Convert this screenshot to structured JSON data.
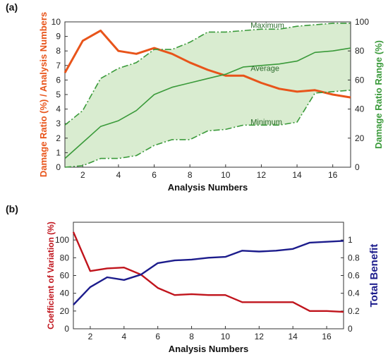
{
  "chart_data": [
    {
      "panel_label": "(a)",
      "type": "line",
      "xlabel": "Analysis Numbers",
      "ylabel_left": "Damage Ratio (%) / Analysis Numbers",
      "ylabel_right": "Damage Ratio Range (%)",
      "xlim": [
        1,
        17
      ],
      "ylim_left": [
        0,
        10
      ],
      "ylim_right": [
        0,
        100
      ],
      "x_ticks": [
        2,
        4,
        6,
        8,
        10,
        12,
        14,
        16
      ],
      "y_ticks_left": [
        0,
        1,
        2,
        3,
        4,
        5,
        6,
        7,
        8,
        9,
        10
      ],
      "y_ticks_right": [
        0,
        20,
        40,
        60,
        80,
        100
      ],
      "x": [
        1,
        2,
        3,
        4,
        5,
        6,
        7,
        8,
        9,
        10,
        11,
        12,
        13,
        14,
        15,
        16,
        17
      ],
      "series": [
        {
          "name": "Damage Ratio / Analysis Numbers",
          "axis": "left",
          "color": "#e8541a",
          "values": [
            6.5,
            8.7,
            9.4,
            8.0,
            7.8,
            8.2,
            7.8,
            7.2,
            6.7,
            6.3,
            6.3,
            5.8,
            5.4,
            5.2,
            5.3,
            5.0,
            4.8
          ]
        },
        {
          "name": "Maximum",
          "axis": "right",
          "color": "#3a9a3a",
          "dashed": true,
          "values": [
            29,
            39,
            61,
            68,
            72,
            81,
            81,
            86,
            93,
            93,
            94,
            95,
            95,
            97,
            98,
            99,
            99
          ]
        },
        {
          "name": "Average",
          "axis": "right",
          "color": "#3a9a3a",
          "dashed": false,
          "values": [
            6,
            17,
            28,
            32,
            39,
            50,
            55,
            58,
            61,
            64,
            69,
            70,
            71,
            73,
            79,
            80,
            82
          ]
        },
        {
          "name": "Minimum",
          "axis": "right",
          "color": "#3a9a3a",
          "dashed": true,
          "values": [
            0,
            1,
            6,
            6,
            8,
            15,
            19,
            19,
            25,
            26,
            29,
            29,
            29,
            31,
            51,
            52,
            53
          ]
        }
      ],
      "fill_between": [
        "Minimum",
        "Maximum"
      ],
      "fill_color": "#d9ecd0",
      "annotations": [
        "Maximum",
        "Average",
        "Minimum"
      ]
    },
    {
      "panel_label": "(b)",
      "type": "line",
      "xlabel": "Analysis Numbers",
      "ylabel_left": "Coefficient of Variation (%)",
      "ylabel_right": "Total Benefit",
      "xlim": [
        1,
        17
      ],
      "ylim_left": [
        0,
        120
      ],
      "ylim_right": [
        0,
        1.2
      ],
      "x_ticks": [
        2,
        4,
        6,
        8,
        10,
        12,
        14,
        16
      ],
      "y_ticks_left": [
        0,
        20,
        40,
        60,
        80,
        100
      ],
      "y_ticks_right": [
        0,
        0.2,
        0.4,
        0.6,
        0.8,
        1
      ],
      "x": [
        1,
        2,
        3,
        4,
        5,
        6,
        7,
        8,
        9,
        10,
        11,
        12,
        13,
        14,
        15,
        16,
        17
      ],
      "series": [
        {
          "name": "Coefficient of Variation",
          "axis": "left",
          "color": "#c0141c",
          "values": [
            109,
            65,
            68,
            69,
            61,
            46,
            38,
            39,
            38,
            38,
            30,
            30,
            30,
            30,
            20,
            20,
            19
          ]
        },
        {
          "name": "Total Benefit",
          "axis": "right",
          "color": "#1c1c8c",
          "values": [
            0.27,
            0.47,
            0.58,
            0.55,
            0.61,
            0.74,
            0.77,
            0.78,
            0.8,
            0.81,
            0.88,
            0.87,
            0.88,
            0.9,
            0.97,
            0.98,
            0.99
          ]
        }
      ]
    }
  ]
}
